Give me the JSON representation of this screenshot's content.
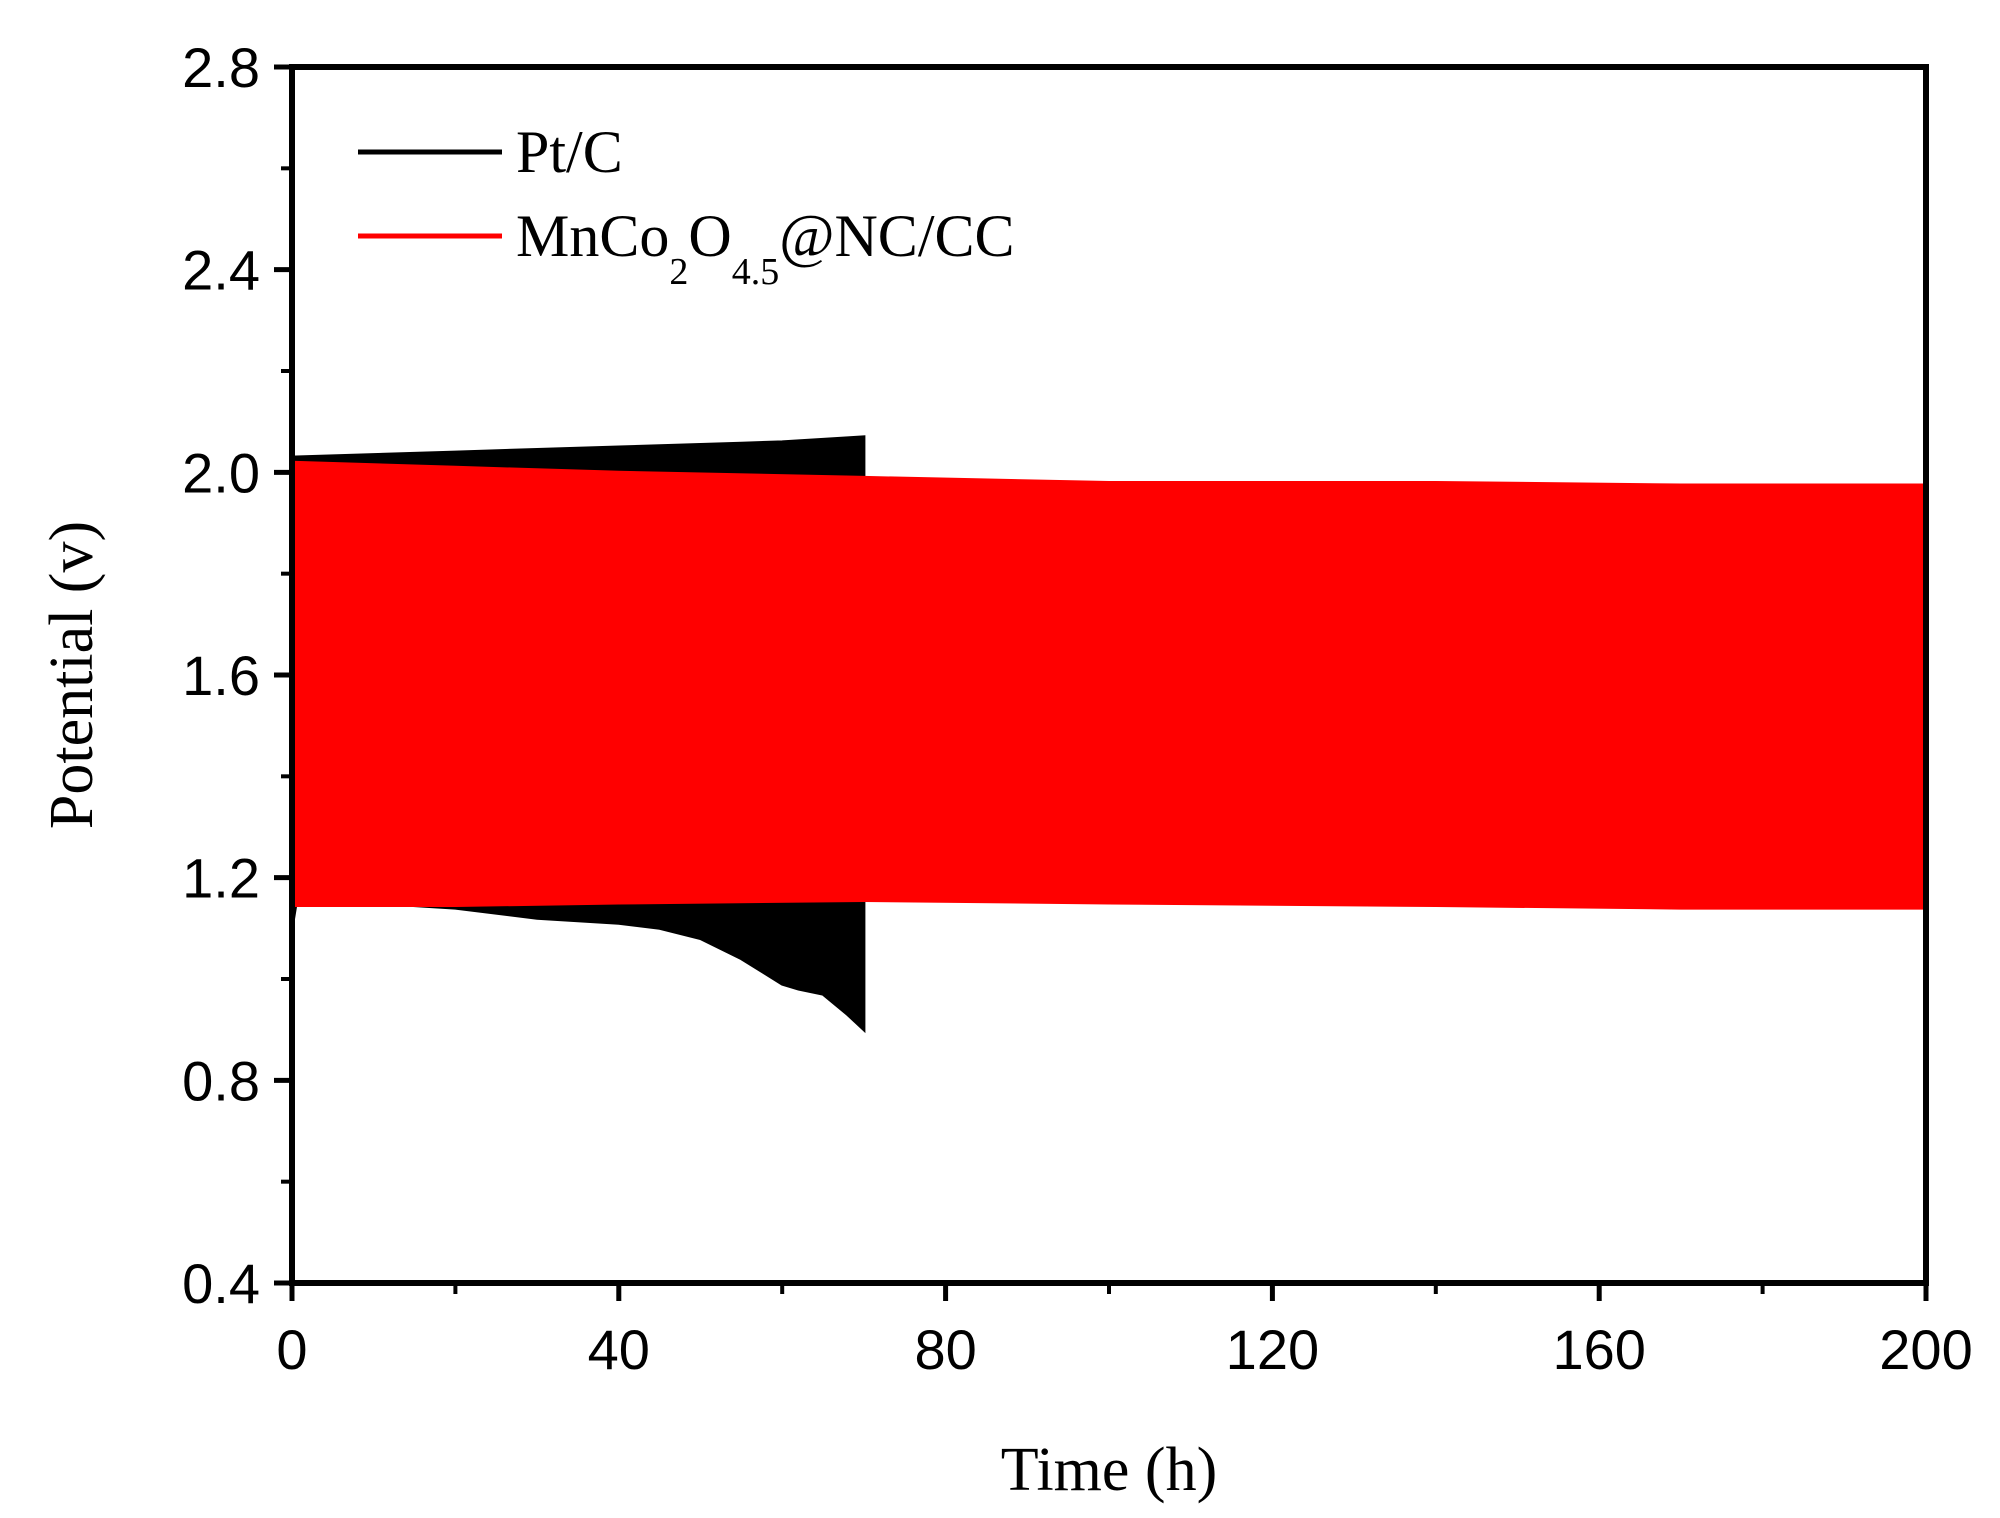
{
  "chart_data": {
    "type": "line",
    "xlabel": "Time (h)",
    "ylabel": "Potential (v)",
    "xlim": [
      0,
      200
    ],
    "ylim": [
      0.4,
      2.8
    ],
    "x_ticks": [
      0,
      40,
      80,
      120,
      160,
      200
    ],
    "x_tick_labels": [
      "0",
      "40",
      "80",
      "120",
      "160",
      "200"
    ],
    "y_ticks": [
      0.4,
      0.8,
      1.2,
      1.6,
      2.0,
      2.4,
      2.8
    ],
    "y_tick_labels": [
      "0.4",
      "0.8",
      "1.2",
      "1.6",
      "2.0",
      "2.4",
      "2.8"
    ],
    "grid": false,
    "legend_position": "top-left",
    "series": [
      {
        "name": "Pt/C",
        "color": "#000000",
        "charge_envelope": {
          "x": [
            0,
            10,
            20,
            30,
            40,
            50,
            60,
            65,
            70
          ],
          "y": [
            2.03,
            2.035,
            2.04,
            2.045,
            2.05,
            2.055,
            2.06,
            2.065,
            2.07
          ]
        },
        "discharge_envelope": {
          "x": [
            0,
            0.5,
            10,
            20,
            30,
            40,
            45,
            50,
            55,
            60,
            62,
            65,
            68,
            70
          ],
          "y": [
            1.1,
            1.15,
            1.15,
            1.14,
            1.12,
            1.11,
            1.1,
            1.08,
            1.04,
            0.99,
            0.98,
            0.97,
            0.93,
            0.9
          ]
        }
      },
      {
        "name": "MnCo2O4.5@NC/CC",
        "legend_parts": {
          "main": "MnCo",
          "sub1": "2",
          "mid": "O",
          "sub2": "4.5",
          "rest": "@NC/CC"
        },
        "color": "#ff0000",
        "charge_envelope": {
          "x": [
            0,
            20,
            40,
            70,
            100,
            140,
            170,
            200
          ],
          "y": [
            2.02,
            2.01,
            2.0,
            1.99,
            1.98,
            1.98,
            1.975,
            1.975
          ]
        },
        "discharge_envelope": {
          "x": [
            0,
            20,
            40,
            70,
            100,
            140,
            170,
            200
          ],
          "y": [
            1.145,
            1.145,
            1.15,
            1.155,
            1.15,
            1.145,
            1.14,
            1.14
          ]
        }
      }
    ]
  }
}
